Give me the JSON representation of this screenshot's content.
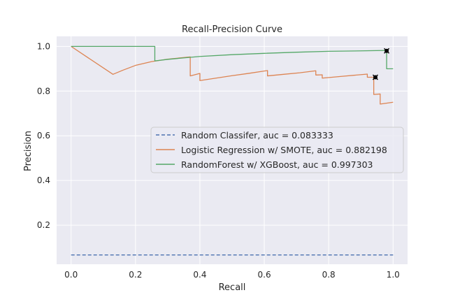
{
  "chart_data": {
    "type": "line",
    "title": "Recall-Precision Curve",
    "xlabel": "Recall",
    "ylabel": "Precision",
    "xlim": [
      -0.045,
      1.045
    ],
    "ylim": [
      0.025,
      1.045
    ],
    "xticks": [
      0.0,
      0.2,
      0.4,
      0.6,
      0.8,
      1.0
    ],
    "xtick_labels": [
      "0.0",
      "0.2",
      "0.4",
      "0.6",
      "0.8",
      "1.0"
    ],
    "yticks": [
      0.2,
      0.4,
      0.6,
      0.8,
      1.0
    ],
    "ytick_labels": [
      "0.2",
      "0.4",
      "0.6",
      "0.8",
      "1.0"
    ],
    "grid": true,
    "legend_position": "center-right",
    "series": [
      {
        "name": "Random Classifer, auc = 0.083333",
        "color": "#4c72b0",
        "style": "dashed",
        "points": [
          [
            0.0,
            0.0667
          ],
          [
            1.0,
            0.0667
          ]
        ]
      },
      {
        "name": "Logistic Regression w/ SMOTE, auc = 0.882198",
        "color": "#dd8452",
        "style": "solid",
        "points": [
          [
            0.0,
            1.0
          ],
          [
            0.13,
            0.875
          ],
          [
            0.16,
            0.893
          ],
          [
            0.2,
            0.915
          ],
          [
            0.25,
            0.932
          ],
          [
            0.3,
            0.943
          ],
          [
            0.37,
            0.953
          ],
          [
            0.37,
            0.868
          ],
          [
            0.4,
            0.879
          ],
          [
            0.4,
            0.847
          ],
          [
            0.45,
            0.858
          ],
          [
            0.5,
            0.869
          ],
          [
            0.55,
            0.879
          ],
          [
            0.61,
            0.892
          ],
          [
            0.61,
            0.868
          ],
          [
            0.66,
            0.875
          ],
          [
            0.71,
            0.882
          ],
          [
            0.76,
            0.891
          ],
          [
            0.76,
            0.872
          ],
          [
            0.78,
            0.873
          ],
          [
            0.78,
            0.858
          ],
          [
            0.84,
            0.866
          ],
          [
            0.92,
            0.876
          ],
          [
            0.92,
            0.862
          ],
          [
            0.94,
            0.862
          ],
          [
            0.94,
            0.785
          ],
          [
            0.96,
            0.787
          ],
          [
            0.96,
            0.742
          ],
          [
            1.0,
            0.75
          ]
        ]
      },
      {
        "name": "RandomForest w/ XGBoost, auc = 0.997303",
        "color": "#55a868",
        "style": "solid",
        "points": [
          [
            0.0,
            1.0
          ],
          [
            0.26,
            1.0
          ],
          [
            0.26,
            0.935
          ],
          [
            0.3,
            0.942
          ],
          [
            0.4,
            0.955
          ],
          [
            0.5,
            0.963
          ],
          [
            0.6,
            0.969
          ],
          [
            0.7,
            0.974
          ],
          [
            0.8,
            0.978
          ],
          [
            0.9,
            0.98
          ],
          [
            0.98,
            0.982
          ],
          [
            0.98,
            0.9
          ],
          [
            1.0,
            0.9
          ]
        ]
      }
    ],
    "markers": [
      {
        "x": 0.945,
        "y": 0.862,
        "color": "#000000"
      },
      {
        "x": 0.98,
        "y": 0.98,
        "color": "#000000"
      }
    ]
  }
}
